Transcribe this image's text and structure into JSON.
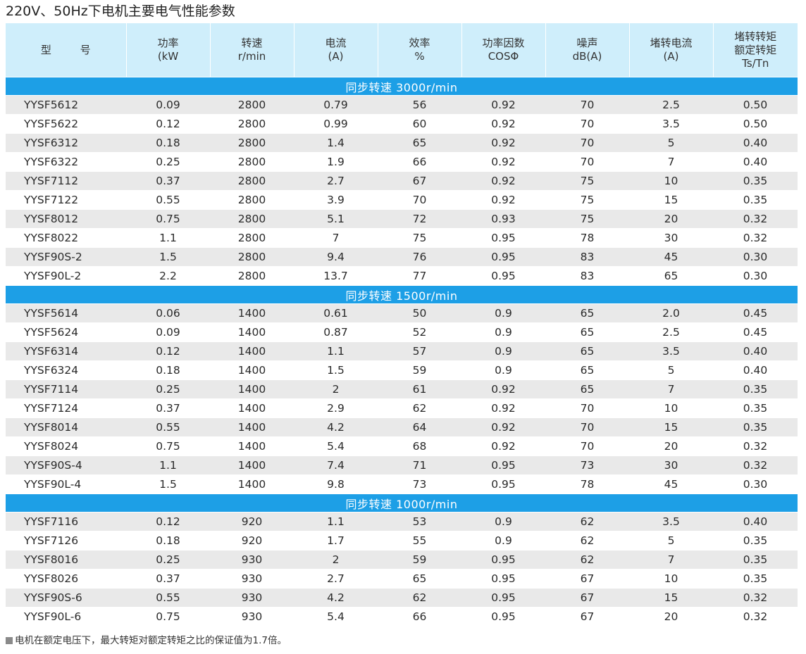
{
  "title": "220V、50Hz下电机主要电气性能参数",
  "headers": [
    {
      "lines": [
        "型 号"
      ]
    },
    {
      "lines": [
        "功率",
        "(kW"
      ]
    },
    {
      "lines": [
        "转速",
        "r/min"
      ]
    },
    {
      "lines": [
        "电流",
        "(A)"
      ]
    },
    {
      "lines": [
        "效率",
        "%"
      ]
    },
    {
      "lines": [
        "功率因数",
        "COSΦ"
      ]
    },
    {
      "lines": [
        "噪声",
        "dB(A)"
      ]
    },
    {
      "lines": [
        "堵转电流",
        "(A)"
      ]
    },
    {
      "lines": [
        "堵转转矩",
        "额定转矩",
        "Ts/Tn"
      ]
    }
  ],
  "sections": [
    {
      "label": "同步转速  3000r/min",
      "rows": [
        [
          "YYSF5612",
          "0.09",
          "2800",
          "0.79",
          "56",
          "0.92",
          "70",
          "2.5",
          "0.50"
        ],
        [
          "YYSF5622",
          "0.12",
          "2800",
          "0.99",
          "60",
          "0.92",
          "70",
          "3.5",
          "0.50"
        ],
        [
          "YYSF6312",
          "0.18",
          "2800",
          "1.4",
          "65",
          "0.92",
          "70",
          "5",
          "0.40"
        ],
        [
          "YYSF6322",
          "0.25",
          "2800",
          "1.9",
          "66",
          "0.92",
          "70",
          "7",
          "0.40"
        ],
        [
          "YYSF7112",
          "0.37",
          "2800",
          "2.7",
          "67",
          "0.92",
          "75",
          "10",
          "0.35"
        ],
        [
          "YYSF7122",
          "0.55",
          "2800",
          "3.9",
          "70",
          "0.92",
          "75",
          "15",
          "0.35"
        ],
        [
          "YYSF8012",
          "0.75",
          "2800",
          "5.1",
          "72",
          "0.93",
          "75",
          "20",
          "0.32"
        ],
        [
          "YYSF8022",
          "1.1",
          "2800",
          "7",
          "75",
          "0.95",
          "78",
          "30",
          "0.32"
        ],
        [
          "YYSF90S-2",
          "1.5",
          "2800",
          "9.4",
          "76",
          "0.95",
          "83",
          "45",
          "0.30"
        ],
        [
          "YYSF90L-2",
          "2.2",
          "2800",
          "13.7",
          "77",
          "0.95",
          "83",
          "65",
          "0.30"
        ]
      ]
    },
    {
      "label": "同步转速  1500r/min",
      "rows": [
        [
          "YYSF5614",
          "0.06",
          "1400",
          "0.61",
          "50",
          "0.9",
          "65",
          "2.0",
          "0.45"
        ],
        [
          "YYSF5624",
          "0.09",
          "1400",
          "0.87",
          "52",
          "0.9",
          "65",
          "2.5",
          "0.45"
        ],
        [
          "YYSF6314",
          "0.12",
          "1400",
          "1.1",
          "57",
          "0.9",
          "65",
          "3.5",
          "0.40"
        ],
        [
          "YYSF6324",
          "0.18",
          "1400",
          "1.5",
          "59",
          "0.9",
          "65",
          "5",
          "0.40"
        ],
        [
          "YYSF7114",
          "0.25",
          "1400",
          "2",
          "61",
          "0.92",
          "65",
          "7",
          "0.35"
        ],
        [
          "YYSF7124",
          "0.37",
          "1400",
          "2.9",
          "62",
          "0.92",
          "70",
          "10",
          "0.35"
        ],
        [
          "YYSF8014",
          "0.55",
          "1400",
          "4.2",
          "64",
          "0.92",
          "70",
          "15",
          "0.35"
        ],
        [
          "YYSF8024",
          "0.75",
          "1400",
          "5.4",
          "68",
          "0.92",
          "70",
          "20",
          "0.32"
        ],
        [
          "YYSF90S-4",
          "1.1",
          "1400",
          "7.4",
          "71",
          "0.95",
          "73",
          "30",
          "0.32"
        ],
        [
          "YYSF90L-4",
          "1.5",
          "1400",
          "9.8",
          "73",
          "0.95",
          "78",
          "45",
          "0.30"
        ]
      ]
    },
    {
      "label": "同步转速  1000r/min",
      "rows": [
        [
          "YYSF7116",
          "0.12",
          "920",
          "1.1",
          "53",
          "0.9",
          "62",
          "3.5",
          "0.40"
        ],
        [
          "YYSF7126",
          "0.18",
          "920",
          "1.7",
          "55",
          "0.9",
          "62",
          "5",
          "0.35"
        ],
        [
          "YYSF8016",
          "0.25",
          "930",
          "2",
          "59",
          "0.95",
          "62",
          "7",
          "0.35"
        ],
        [
          "YYSF8026",
          "0.37",
          "930",
          "2.7",
          "65",
          "0.95",
          "67",
          "10",
          "0.35"
        ],
        [
          "YYSF90S-6",
          "0.55",
          "930",
          "4.2",
          "62",
          "0.95",
          "67",
          "15",
          "0.32"
        ],
        [
          "YYSF90L-6",
          "0.75",
          "930",
          "5.4",
          "66",
          "0.95",
          "67",
          "20",
          "0.32"
        ]
      ]
    }
  ],
  "footnote": "电机在额定电压下，最大转矩对额定转矩之比的保证值为1.7倍。",
  "colors": {
    "header_bg": "#cfeefb",
    "section_bg": "#1d9fe6",
    "stripe_bg": "#e9e9e9"
  }
}
